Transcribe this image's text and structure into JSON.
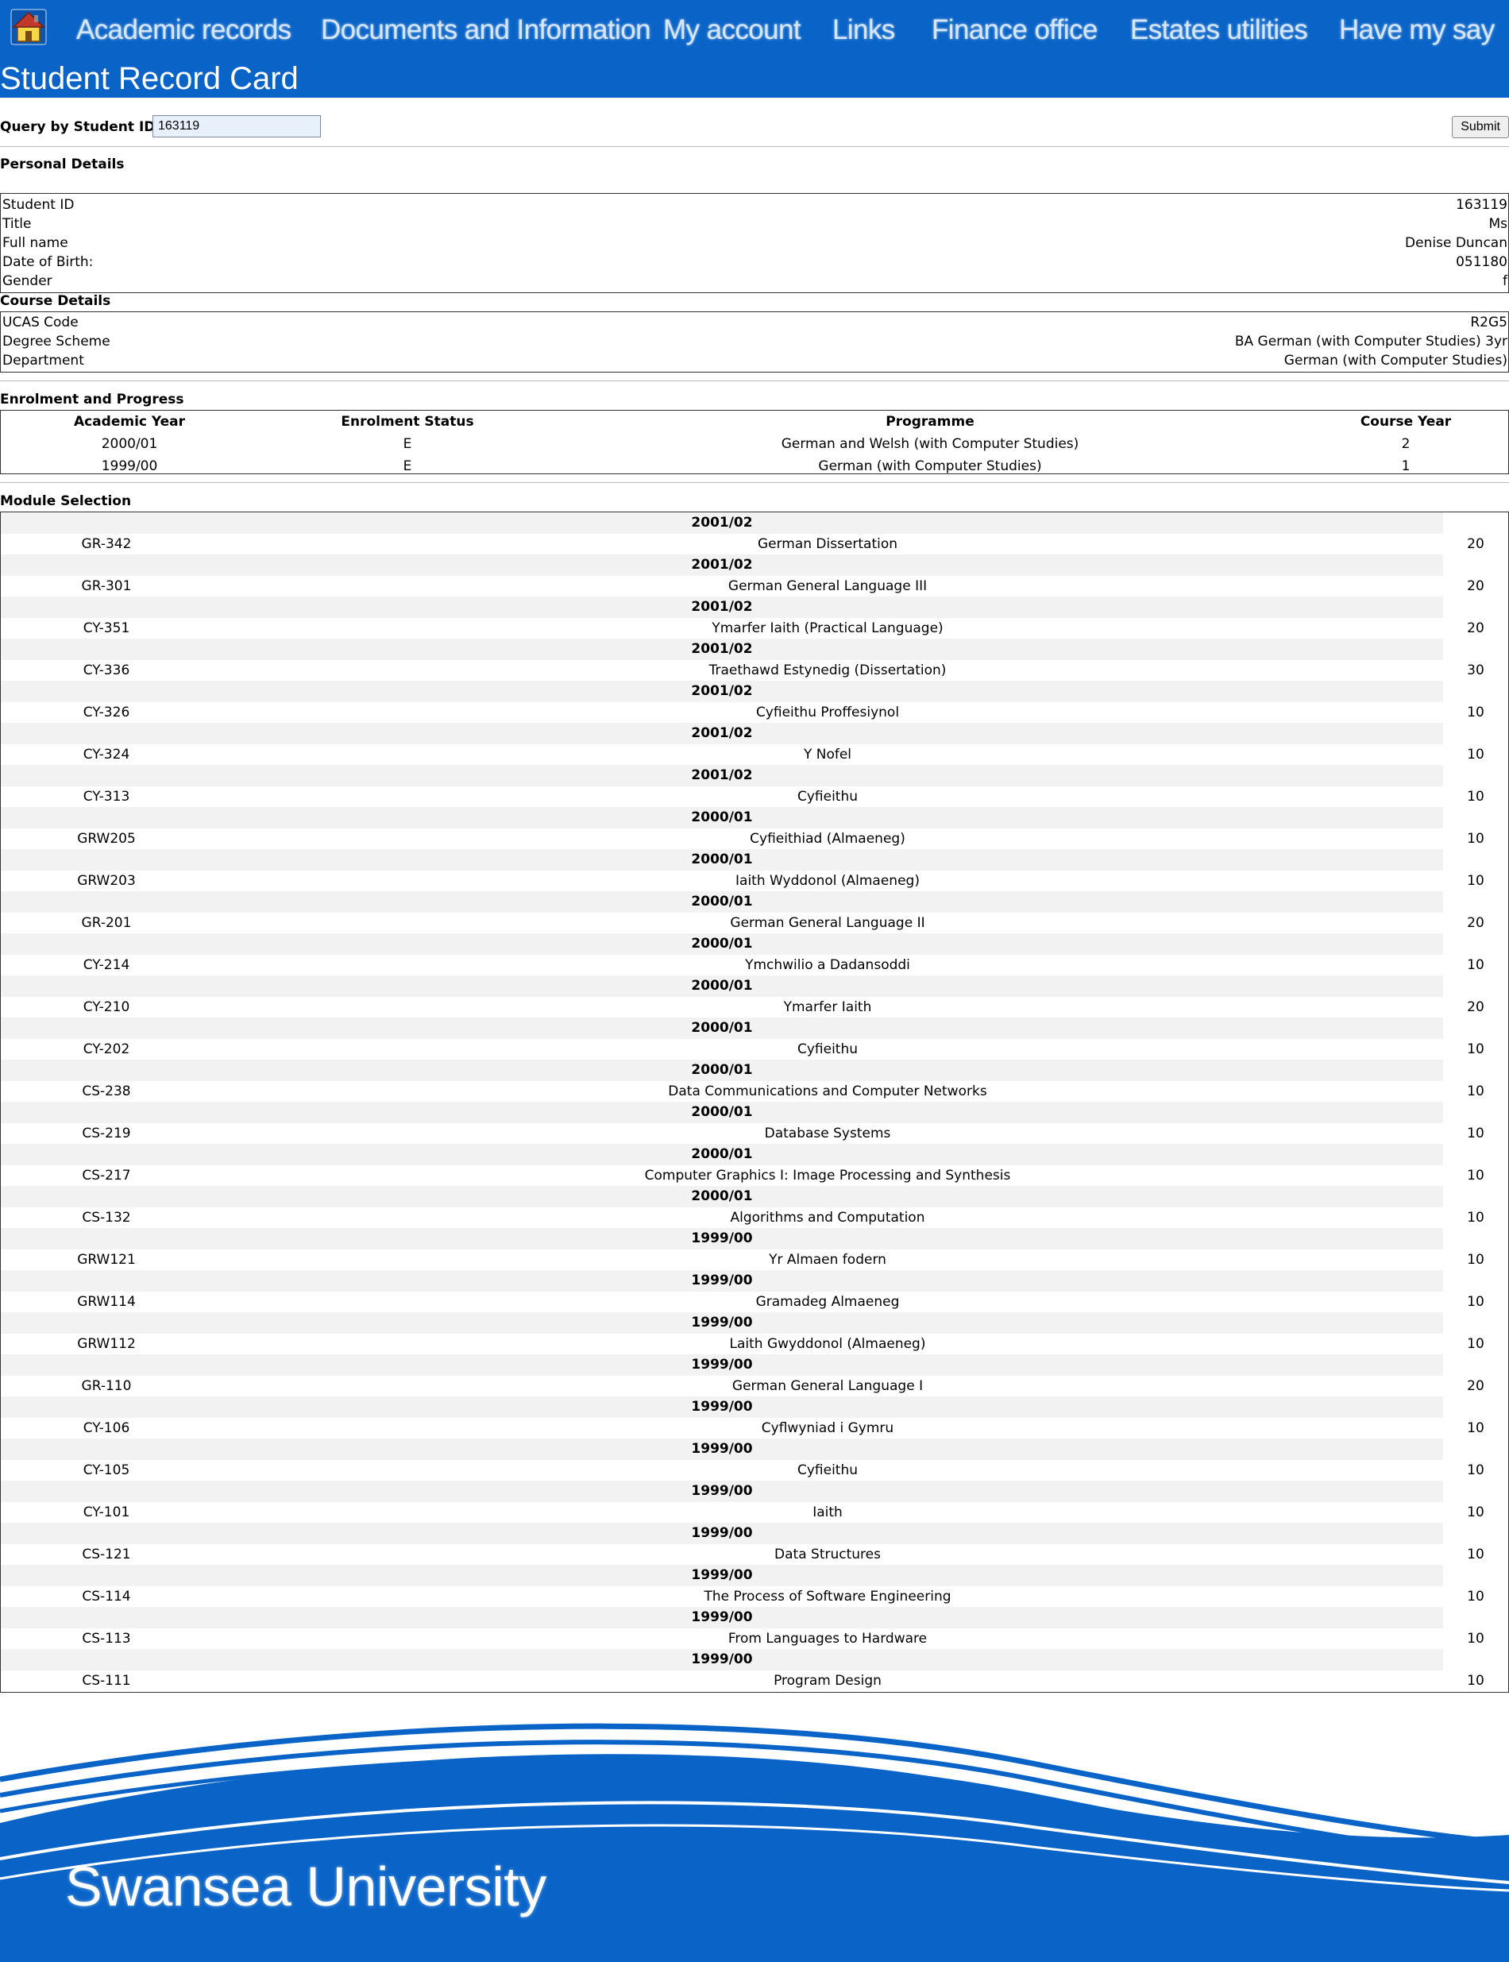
{
  "nav": {
    "home_icon": "home-icon",
    "items": [
      "Academic records",
      "Documents and Information",
      "My account",
      "Links",
      "Finance office",
      "Estates utilities",
      "Have my say"
    ]
  },
  "page_title": "Student Record Card",
  "query": {
    "label": "Query by Student ID #:",
    "value": "163119",
    "submit_label": "Submit"
  },
  "personal": {
    "title": "Personal Details",
    "rows": [
      {
        "label": "Student ID",
        "value": "163119"
      },
      {
        "label": "Title",
        "value": "Ms"
      },
      {
        "label": "Full name",
        "value": "Denise Duncan"
      },
      {
        "label": "Date of Birth:",
        "value": "051180"
      },
      {
        "label": "Gender",
        "value": "f"
      }
    ]
  },
  "course": {
    "title": "Course Details",
    "rows": [
      {
        "label": "UCAS Code",
        "value": "R2G5"
      },
      {
        "label": "Degree Scheme",
        "value": "BA German (with Computer Studies) 3yr"
      },
      {
        "label": "Department",
        "value": "German (with Computer Studies)"
      }
    ]
  },
  "enrolment": {
    "title": "Enrolment and Progress",
    "headers": [
      "Academic Year",
      "Enrolment Status",
      "Programme",
      "Course Year"
    ],
    "rows": [
      [
        "2000/01",
        "E",
        "German and Welsh (with Computer Studies)",
        "2"
      ],
      [
        "1999/00",
        "E",
        "German (with Computer Studies)",
        "1"
      ]
    ]
  },
  "modules": {
    "title": "Module Selection",
    "rows": [
      {
        "year": "2001/02",
        "code": "GR-342",
        "name": "German Dissertation",
        "credits": "20"
      },
      {
        "year": "2001/02",
        "code": "GR-301",
        "name": "German General Language III",
        "credits": "20"
      },
      {
        "year": "2001/02",
        "code": "CY-351",
        "name": "Ymarfer Iaith (Practical Language)",
        "credits": "20"
      },
      {
        "year": "2001/02",
        "code": "CY-336",
        "name": "Traethawd Estynedig (Dissertation)",
        "credits": "30"
      },
      {
        "year": "2001/02",
        "code": "CY-326",
        "name": "Cyfieithu Proffesiynol",
        "credits": "10"
      },
      {
        "year": "2001/02",
        "code": "CY-324",
        "name": "Y Nofel",
        "credits": "10"
      },
      {
        "year": "2001/02",
        "code": "CY-313",
        "name": "Cyfieithu",
        "credits": "10"
      },
      {
        "year": "2000/01",
        "code": "GRW205",
        "name": "Cyfieithiad (Almaeneg)",
        "credits": "10"
      },
      {
        "year": "2000/01",
        "code": "GRW203",
        "name": "Iaith Wyddonol (Almaeneg)",
        "credits": "10"
      },
      {
        "year": "2000/01",
        "code": "GR-201",
        "name": "German General Language II",
        "credits": "20"
      },
      {
        "year": "2000/01",
        "code": "CY-214",
        "name": "Ymchwilio a Dadansoddi",
        "credits": "10"
      },
      {
        "year": "2000/01",
        "code": "CY-210",
        "name": "Ymarfer Iaith",
        "credits": "20"
      },
      {
        "year": "2000/01",
        "code": "CY-202",
        "name": "Cyfieithu",
        "credits": "10"
      },
      {
        "year": "2000/01",
        "code": "CS-238",
        "name": "Data Communications and Computer Networks",
        "credits": "10"
      },
      {
        "year": "2000/01",
        "code": "CS-219",
        "name": "Database Systems",
        "credits": "10"
      },
      {
        "year": "2000/01",
        "code": "CS-217",
        "name": "Computer Graphics I: Image Processing and Synthesis",
        "credits": "10"
      },
      {
        "year": "2000/01",
        "code": "CS-132",
        "name": "Algorithms and Computation",
        "credits": "10"
      },
      {
        "year": "1999/00",
        "code": "GRW121",
        "name": "Yr Almaen fodern",
        "credits": "10"
      },
      {
        "year": "1999/00",
        "code": "GRW114",
        "name": "Gramadeg Almaeneg",
        "credits": "10"
      },
      {
        "year": "1999/00",
        "code": "GRW112",
        "name": "Laith Gwyddonol (Almaeneg)",
        "credits": "10"
      },
      {
        "year": "1999/00",
        "code": "GR-110",
        "name": "German General Language I",
        "credits": "20"
      },
      {
        "year": "1999/00",
        "code": "CY-106",
        "name": "Cyflwyniad i Gymru",
        "credits": "10"
      },
      {
        "year": "1999/00",
        "code": "CY-105",
        "name": "Cyfieithu",
        "credits": "10"
      },
      {
        "year": "1999/00",
        "code": "CY-101",
        "name": "Iaith",
        "credits": "10"
      },
      {
        "year": "1999/00",
        "code": "CS-121",
        "name": "Data Structures",
        "credits": "10"
      },
      {
        "year": "1999/00",
        "code": "CS-114",
        "name": "The Process of Software Engineering",
        "credits": "10"
      },
      {
        "year": "1999/00",
        "code": "CS-113",
        "name": "From Languages to Hardware",
        "credits": "10"
      },
      {
        "year": "1999/00",
        "code": "CS-111",
        "name": "Program Design",
        "credits": "10"
      }
    ]
  },
  "footer": {
    "brand": "Swansea University"
  },
  "colors": {
    "brand_blue": "#0a64c8",
    "nav_text": "#d6e6fb",
    "row_shade": "#f2f2f2"
  }
}
